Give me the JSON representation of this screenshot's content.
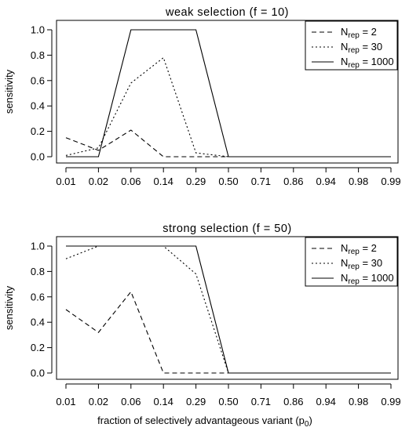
{
  "figure": {
    "xlabel": "fraction of selectively advantageous variant (p",
    "xlabel_sub": "0",
    "xlabel_end": ")"
  },
  "chart_data": [
    {
      "type": "line",
      "title": "weak selection (f = 10)",
      "xlabel": "fraction of selectively advantageous variant (p0)",
      "ylabel": "sensitivity",
      "categories": [
        "0.01",
        "0.02",
        "0.06",
        "0.14",
        "0.29",
        "0.50",
        "0.71",
        "0.86",
        "0.94",
        "0.98",
        "0.99"
      ],
      "ylim": [
        0,
        1
      ],
      "yticks": [
        "0.0",
        "0.2",
        "0.4",
        "0.6",
        "0.8",
        "1.0"
      ],
      "legend_position": "top-right",
      "series": [
        {
          "name": "N_rep = 2",
          "label_main": "N",
          "label_sub": "rep",
          "label_tail": " = 2",
          "linestyle": "dashed",
          "values": [
            0.15,
            0.05,
            0.21,
            0.0,
            0.0,
            0.0,
            0.0,
            0.0,
            0.0,
            0.0,
            0.0
          ]
        },
        {
          "name": "N_rep = 30",
          "label_main": "N",
          "label_sub": "rep",
          "label_tail": " = 30",
          "linestyle": "dotted",
          "values": [
            0.01,
            0.07,
            0.58,
            0.78,
            0.03,
            0.0,
            0.0,
            0.0,
            0.0,
            0.0,
            0.0
          ]
        },
        {
          "name": "N_rep = 1000",
          "label_main": "N",
          "label_sub": "rep",
          "label_tail": " = 1000",
          "linestyle": "solid",
          "values": [
            0.0,
            0.0,
            1.0,
            1.0,
            1.0,
            0.0,
            0.0,
            0.0,
            0.0,
            0.0,
            0.0
          ]
        }
      ]
    },
    {
      "type": "line",
      "title": "strong selection (f = 50)",
      "xlabel": "fraction of selectively advantageous variant (p0)",
      "ylabel": "sensitivity",
      "categories": [
        "0.01",
        "0.02",
        "0.06",
        "0.14",
        "0.29",
        "0.50",
        "0.71",
        "0.86",
        "0.94",
        "0.98",
        "0.99"
      ],
      "ylim": [
        0,
        1
      ],
      "yticks": [
        "0.0",
        "0.2",
        "0.4",
        "0.6",
        "0.8",
        "1.0"
      ],
      "legend_position": "top-right",
      "series": [
        {
          "name": "N_rep = 2",
          "label_main": "N",
          "label_sub": "rep",
          "label_tail": " = 2",
          "linestyle": "dashed",
          "values": [
            0.5,
            0.32,
            0.64,
            0.0,
            0.0,
            0.0,
            0.0,
            0.0,
            0.0,
            0.0,
            0.0
          ]
        },
        {
          "name": "N_rep = 30",
          "label_main": "N",
          "label_sub": "rep",
          "label_tail": " = 30",
          "linestyle": "dotted",
          "values": [
            0.9,
            1.0,
            1.0,
            1.0,
            0.78,
            0.0,
            0.0,
            0.0,
            0.0,
            0.0,
            0.0
          ]
        },
        {
          "name": "N_rep = 1000",
          "label_main": "N",
          "label_sub": "rep",
          "label_tail": " = 1000",
          "linestyle": "solid",
          "values": [
            1.0,
            1.0,
            1.0,
            1.0,
            1.0,
            0.0,
            0.0,
            0.0,
            0.0,
            0.0,
            0.0
          ]
        }
      ]
    }
  ]
}
